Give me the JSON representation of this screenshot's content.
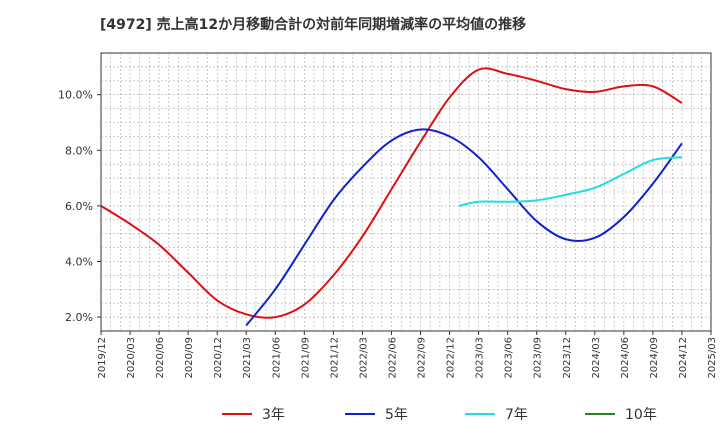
{
  "chart_data": {
    "type": "line",
    "title": "[4972]  売上高12か月移動合計の対前年同期増減率の平均値の推移",
    "xlabel": "",
    "ylabel": "",
    "ylim": [
      1.5,
      11.5
    ],
    "y_ticks": [
      "2.0%",
      "4.0%",
      "6.0%",
      "8.0%",
      "10.0%"
    ],
    "y_tick_values": [
      2,
      4,
      6,
      8,
      10
    ],
    "x_ticks": [
      "2019/12",
      "2020/03",
      "2020/06",
      "2020/09",
      "2020/12",
      "2021/03",
      "2021/06",
      "2021/09",
      "2021/12",
      "2022/03",
      "2022/06",
      "2022/09",
      "2022/12",
      "2023/03",
      "2023/06",
      "2023/09",
      "2023/12",
      "2024/03",
      "2024/06",
      "2024/09",
      "2024/12",
      "2025/03"
    ],
    "grid": true,
    "legend_position": "bottom",
    "series": [
      {
        "name": "3年",
        "color": "#dd1111",
        "x": [
          "2019/12",
          "2020/03",
          "2020/06",
          "2020/09",
          "2020/12",
          "2021/03",
          "2021/06",
          "2021/09",
          "2021/12",
          "2022/03",
          "2022/06",
          "2022/09",
          "2022/12",
          "2023/03",
          "2023/06",
          "2023/09",
          "2023/12",
          "2024/03",
          "2024/06",
          "2024/09",
          "2024/12"
        ],
        "values": [
          6.0,
          5.35,
          4.6,
          3.6,
          2.6,
          2.1,
          2.0,
          2.45,
          3.5,
          4.9,
          6.6,
          8.3,
          9.9,
          10.9,
          10.75,
          10.5,
          10.2,
          10.1,
          10.3,
          10.3,
          9.7
        ]
      },
      {
        "name": "5年",
        "color": "#1122cc",
        "x": [
          "2021/03",
          "2021/06",
          "2021/09",
          "2021/12",
          "2022/03",
          "2022/06",
          "2022/09",
          "2022/12",
          "2023/03",
          "2023/06",
          "2023/09",
          "2023/12",
          "2024/03",
          "2024/06",
          "2024/09",
          "2024/12"
        ],
        "values": [
          1.7,
          3.0,
          4.6,
          6.2,
          7.4,
          8.35,
          8.75,
          8.5,
          7.75,
          6.6,
          5.45,
          4.8,
          4.85,
          5.6,
          6.8,
          8.25
        ]
      },
      {
        "name": "7年",
        "color": "#22dddd",
        "x": [
          "2023/01",
          "2023/03",
          "2023/06",
          "2023/09",
          "2023/12",
          "2024/03",
          "2024/06",
          "2024/09",
          "2024/12"
        ],
        "values": [
          6.0,
          6.15,
          6.15,
          6.2,
          6.4,
          6.65,
          7.15,
          7.65,
          7.75
        ]
      },
      {
        "name": "10年",
        "color": "#228822",
        "x": [],
        "values": []
      }
    ]
  }
}
